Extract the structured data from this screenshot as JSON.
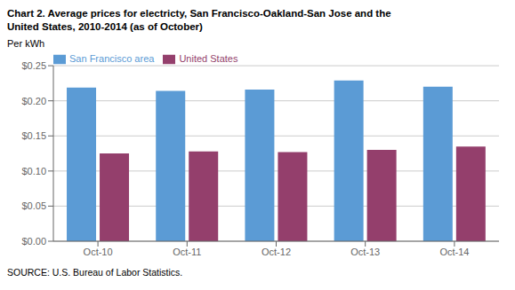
{
  "chart_data": {
    "type": "bar",
    "title": "Chart 2. Average prices for electricty, San Francisco-Oakland-San Jose and the",
    "subtitle": "United States, 2010-2014 (as of October)",
    "y_label": "Per kWh",
    "annotations": [
      "SOURCE: U.S. Bureau of Labor Statistics."
    ],
    "categories": [
      "Oct-10",
      "Oct-11",
      "Oct-12",
      "Oct-13",
      "Oct-14"
    ],
    "series": [
      {
        "name": "San Francisco area",
        "color": "#5B9BD5",
        "values": [
          0.219,
          0.214,
          0.216,
          0.229,
          0.22
        ]
      },
      {
        "name": "United States",
        "color": "#943F6C",
        "values": [
          0.125,
          0.128,
          0.127,
          0.13,
          0.135
        ]
      }
    ],
    "ylim": [
      0.0,
      0.25
    ],
    "yticks": [
      {
        "value": 0.0,
        "label": "$0.00"
      },
      {
        "value": 0.05,
        "label": "$0.05"
      },
      {
        "value": 0.1,
        "label": "$0.10"
      },
      {
        "value": 0.15,
        "label": "$0.15"
      },
      {
        "value": 0.2,
        "label": "$0.20"
      },
      {
        "value": 0.25,
        "label": "$0.25"
      }
    ],
    "grid": true,
    "legend": "upper left"
  }
}
